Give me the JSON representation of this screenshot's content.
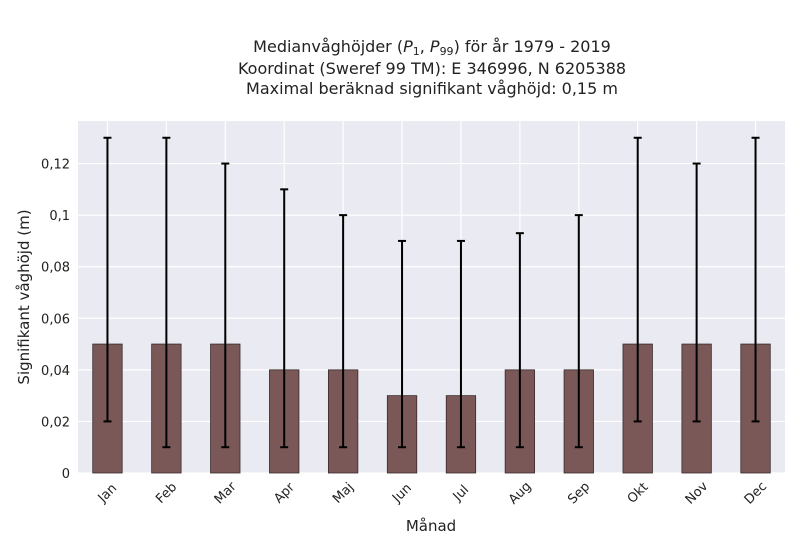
{
  "chart_data": {
    "type": "bar",
    "title_lines": [
      {
        "prefix": "Medianvåghöjder (",
        "p1": "P",
        "p1_sub": "1",
        "sep": ", ",
        "p99": "P",
        "p99_sub": "99",
        "suffix": ") för år 1979 - 2019"
      },
      "Koordinat (Sweref 99 TM): E 346996, N 6205388",
      "Maximal beräknad signifikant våghöjd: 0,15 m"
    ],
    "xlabel": "Månad",
    "ylabel": "Signifikant våghöjd (m)",
    "categories": [
      "Jan",
      "Feb",
      "Mar",
      "Apr",
      "Maj",
      "Jun",
      "Jul",
      "Aug",
      "Sep",
      "Okt",
      "Nov",
      "Dec"
    ],
    "series": [
      {
        "values": [
          0.05,
          0.05,
          0.05,
          0.04,
          0.04,
          0.03,
          0.03,
          0.04,
          0.04,
          0.05,
          0.05,
          0.05
        ],
        "p1": [
          0.02,
          0.01,
          0.01,
          0.01,
          0.01,
          0.01,
          0.01,
          0.01,
          0.01,
          0.02,
          0.02,
          0.02
        ],
        "p99": [
          0.13,
          0.13,
          0.12,
          0.11,
          0.1,
          0.09,
          0.09,
          0.093,
          0.1,
          0.13,
          0.12,
          0.13
        ]
      }
    ],
    "y_ticks": [
      0,
      0.02,
      0.04,
      0.06,
      0.08,
      0.1,
      0.12
    ],
    "y_tick_labels": [
      "0",
      "0,02",
      "0,04",
      "0,06",
      "0,08",
      "0,1",
      "0,12"
    ],
    "ylim": [
      0,
      0.1365
    ],
    "grid": true,
    "colors": {
      "plot_background": "#eaeaf2",
      "grid": "#ffffff",
      "bar_fill": "#7a5858",
      "bar_edge": "#3a2a2a",
      "errorbar": "#000000",
      "text": "#222222"
    }
  }
}
